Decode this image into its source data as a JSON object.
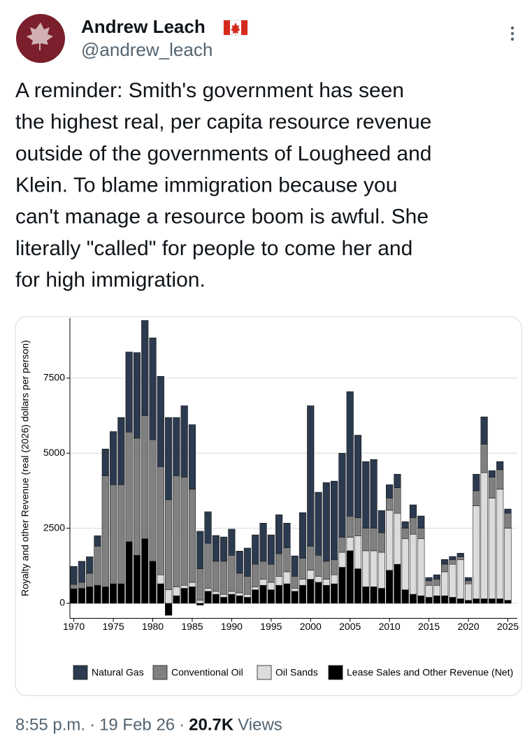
{
  "header": {
    "name": "Andrew Leach",
    "handle": "@andrew_leach"
  },
  "tweet": {
    "lines": [
      "A reminder: Smith's government has seen",
      "the highest real, per capita resource revenue",
      "outside of the governments of Lougheed and",
      "Klein. To blame immigration because you",
      "can't manage a resource boom is awful. She",
      "literally \"called\" for people to come her and",
      "for high immigration."
    ]
  },
  "chart_data": {
    "type": "stacked-bar",
    "y_label": "Royalty and other Revenue (real (2026) dollars per person)",
    "x": [
      1970,
      1971,
      1972,
      1973,
      1974,
      1975,
      1976,
      1977,
      1978,
      1979,
      1980,
      1981,
      1982,
      1983,
      1984,
      1985,
      1986,
      1987,
      1988,
      1989,
      1990,
      1991,
      1992,
      1993,
      1994,
      1995,
      1996,
      1997,
      1998,
      1999,
      2000,
      2001,
      2002,
      2003,
      2004,
      2005,
      2006,
      2007,
      2008,
      2009,
      2010,
      2011,
      2012,
      2013,
      2014,
      2015,
      2016,
      2017,
      2018,
      2019,
      2020,
      2021,
      2022,
      2023,
      2024,
      2025
    ],
    "series": [
      {
        "name": "Natural Gas",
        "color": "#2b3a4e",
        "values": [
          600,
          700,
          550,
          350,
          890,
          1770,
          2240,
          2670,
          2850,
          3170,
          3390,
          3010,
          2740,
          1940,
          2380,
          2150,
          1250,
          1050,
          860,
          810,
          870,
          740,
          940,
          980,
          1270,
          980,
          1300,
          820,
          680,
          1520,
          4680,
          2100,
          2620,
          2620,
          2800,
          4150,
          2750,
          2220,
          2290,
          740,
          450,
          450,
          220,
          430,
          410,
          110,
          150,
          160,
          110,
          120,
          110,
          550,
          910,
          220,
          270,
          140
        ]
      },
      {
        "name": "Conventional Oil",
        "color": "#808080",
        "values": [
          150,
          200,
          450,
          1300,
          3700,
          3300,
          3300,
          3650,
          3900,
          4100,
          4050,
          3600,
          3000,
          3700,
          3600,
          3100,
          1050,
          1500,
          1000,
          1100,
          1200,
          650,
          600,
          750,
          600,
          600,
          750,
          800,
          400,
          700,
          800,
          700,
          600,
          500,
          500,
          700,
          600,
          750,
          750,
          650,
          400,
          850,
          350,
          550,
          350,
          150,
          200,
          250,
          150,
          100,
          100,
          500,
          950,
          700,
          650,
          500
        ]
      },
      {
        "name": "Oil Sands",
        "color": "#dcdcdc",
        "values": [
          0,
          0,
          0,
          0,
          0,
          0,
          0,
          0,
          0,
          0,
          0,
          300,
          450,
          300,
          100,
          150,
          100,
          100,
          100,
          100,
          100,
          100,
          100,
          100,
          200,
          250,
          300,
          400,
          100,
          200,
          300,
          200,
          200,
          300,
          500,
          450,
          1100,
          1200,
          1200,
          1200,
          2000,
          1700,
          1700,
          2000,
          1900,
          400,
          350,
          800,
          1100,
          1300,
          550,
          3100,
          4200,
          3350,
          3650,
          2400
        ]
      },
      {
        "name": "Lease Sales and Other Revenue (Net)",
        "color": "#000000",
        "values": [
          480,
          500,
          550,
          600,
          550,
          650,
          650,
          2050,
          1600,
          2150,
          1400,
          650,
          -400,
          250,
          500,
          550,
          -60,
          400,
          300,
          200,
          300,
          250,
          200,
          450,
          600,
          450,
          600,
          650,
          400,
          600,
          800,
          700,
          600,
          650,
          1200,
          1750,
          1150,
          550,
          550,
          500,
          1100,
          1300,
          450,
          300,
          250,
          200,
          250,
          250,
          200,
          150,
          100,
          150,
          150,
          150,
          150,
          100
        ]
      }
    ],
    "xlim": [
      1969.5,
      2026.2
    ],
    "xticks": [
      1970,
      1975,
      1980,
      1985,
      1990,
      1995,
      2000,
      2005,
      2010,
      2015,
      2020,
      2025
    ],
    "ylim": [
      -500,
      9500
    ],
    "yticks": [
      0,
      2500,
      5000,
      7500
    ],
    "grid": true
  },
  "footer": {
    "time": "8:55 p.m.",
    "separator": "·",
    "date": "19 Feb 26",
    "views_count": "20.7K",
    "views_label": "Views"
  }
}
